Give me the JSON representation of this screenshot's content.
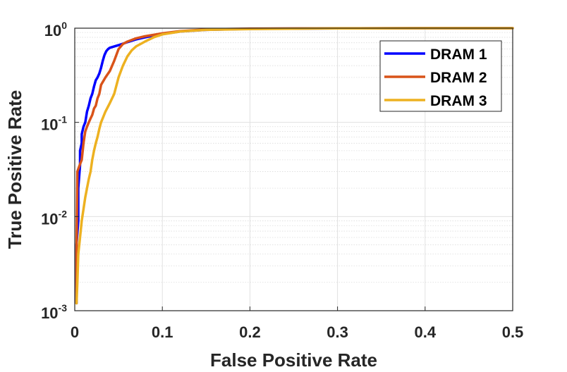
{
  "chart_data": {
    "type": "line",
    "title": "",
    "xlabel": "False Positive Rate",
    "ylabel": "True Positive Rate",
    "xlim": [
      0,
      0.5
    ],
    "ylim": [
      0.001,
      1
    ],
    "yscale": "log",
    "grid": true,
    "legend_position": "top-right",
    "x_ticks": [
      {
        "value": 0,
        "label": "0"
      },
      {
        "value": 0.1,
        "label": "0.1"
      },
      {
        "value": 0.2,
        "label": "0.2"
      },
      {
        "value": 0.3,
        "label": "0.3"
      },
      {
        "value": 0.4,
        "label": "0.4"
      },
      {
        "value": 0.5,
        "label": "0.5"
      }
    ],
    "y_ticks": [
      {
        "value": 1,
        "base": "10",
        "exp": "0"
      },
      {
        "value": 0.1,
        "base": "10",
        "exp": "-1"
      },
      {
        "value": 0.01,
        "base": "10",
        "exp": "-2"
      },
      {
        "value": 0.001,
        "base": "10",
        "exp": "-3"
      }
    ],
    "series": [
      {
        "name": "DRAM 1",
        "color": "#0000ff",
        "x": [
          0.002,
          0.002,
          0.004,
          0.004,
          0.006,
          0.006,
          0.008,
          0.008,
          0.01,
          0.012,
          0.014,
          0.016,
          0.018,
          0.02,
          0.022,
          0.024,
          0.026,
          0.028,
          0.03,
          0.032,
          0.034,
          0.036,
          0.038,
          0.04,
          0.045,
          0.05,
          0.06,
          0.07,
          0.08,
          0.1,
          0.12,
          0.15,
          0.2,
          0.3,
          0.4,
          0.5
        ],
        "y": [
          0.0012,
          0.005,
          0.009,
          0.02,
          0.035,
          0.05,
          0.06,
          0.075,
          0.09,
          0.1,
          0.13,
          0.15,
          0.18,
          0.2,
          0.24,
          0.28,
          0.3,
          0.33,
          0.38,
          0.45,
          0.52,
          0.57,
          0.6,
          0.62,
          0.64,
          0.66,
          0.71,
          0.76,
          0.8,
          0.87,
          0.92,
          0.96,
          0.985,
          0.995,
          1.0,
          1.0
        ]
      },
      {
        "name": "DRAM 2",
        "color": "#d95319",
        "x": [
          0.002,
          0.002,
          0.003,
          0.004,
          0.006,
          0.008,
          0.01,
          0.012,
          0.014,
          0.016,
          0.018,
          0.02,
          0.022,
          0.024,
          0.026,
          0.028,
          0.03,
          0.035,
          0.04,
          0.045,
          0.05,
          0.055,
          0.06,
          0.07,
          0.08,
          0.1,
          0.12,
          0.15,
          0.2,
          0.3,
          0.4,
          0.5
        ],
        "y": [
          0.0012,
          0.004,
          0.03,
          0.032,
          0.036,
          0.04,
          0.06,
          0.08,
          0.09,
          0.1,
          0.11,
          0.12,
          0.14,
          0.15,
          0.18,
          0.2,
          0.25,
          0.3,
          0.35,
          0.45,
          0.6,
          0.68,
          0.72,
          0.78,
          0.82,
          0.88,
          0.93,
          0.97,
          0.99,
          0.998,
          1.0,
          1.0
        ]
      },
      {
        "name": "DRAM 3",
        "color": "#edb120",
        "x": [
          0.002,
          0.003,
          0.004,
          0.006,
          0.008,
          0.01,
          0.012,
          0.014,
          0.016,
          0.018,
          0.02,
          0.022,
          0.024,
          0.026,
          0.028,
          0.03,
          0.035,
          0.04,
          0.045,
          0.05,
          0.055,
          0.06,
          0.065,
          0.07,
          0.08,
          0.09,
          0.1,
          0.12,
          0.15,
          0.2,
          0.3,
          0.4,
          0.5
        ],
        "y": [
          0.0012,
          0.002,
          0.004,
          0.006,
          0.009,
          0.012,
          0.016,
          0.02,
          0.025,
          0.03,
          0.04,
          0.05,
          0.06,
          0.07,
          0.085,
          0.1,
          0.13,
          0.16,
          0.2,
          0.3,
          0.4,
          0.5,
          0.58,
          0.64,
          0.72,
          0.8,
          0.86,
          0.92,
          0.96,
          0.98,
          0.995,
          1.0,
          1.0
        ]
      }
    ]
  }
}
